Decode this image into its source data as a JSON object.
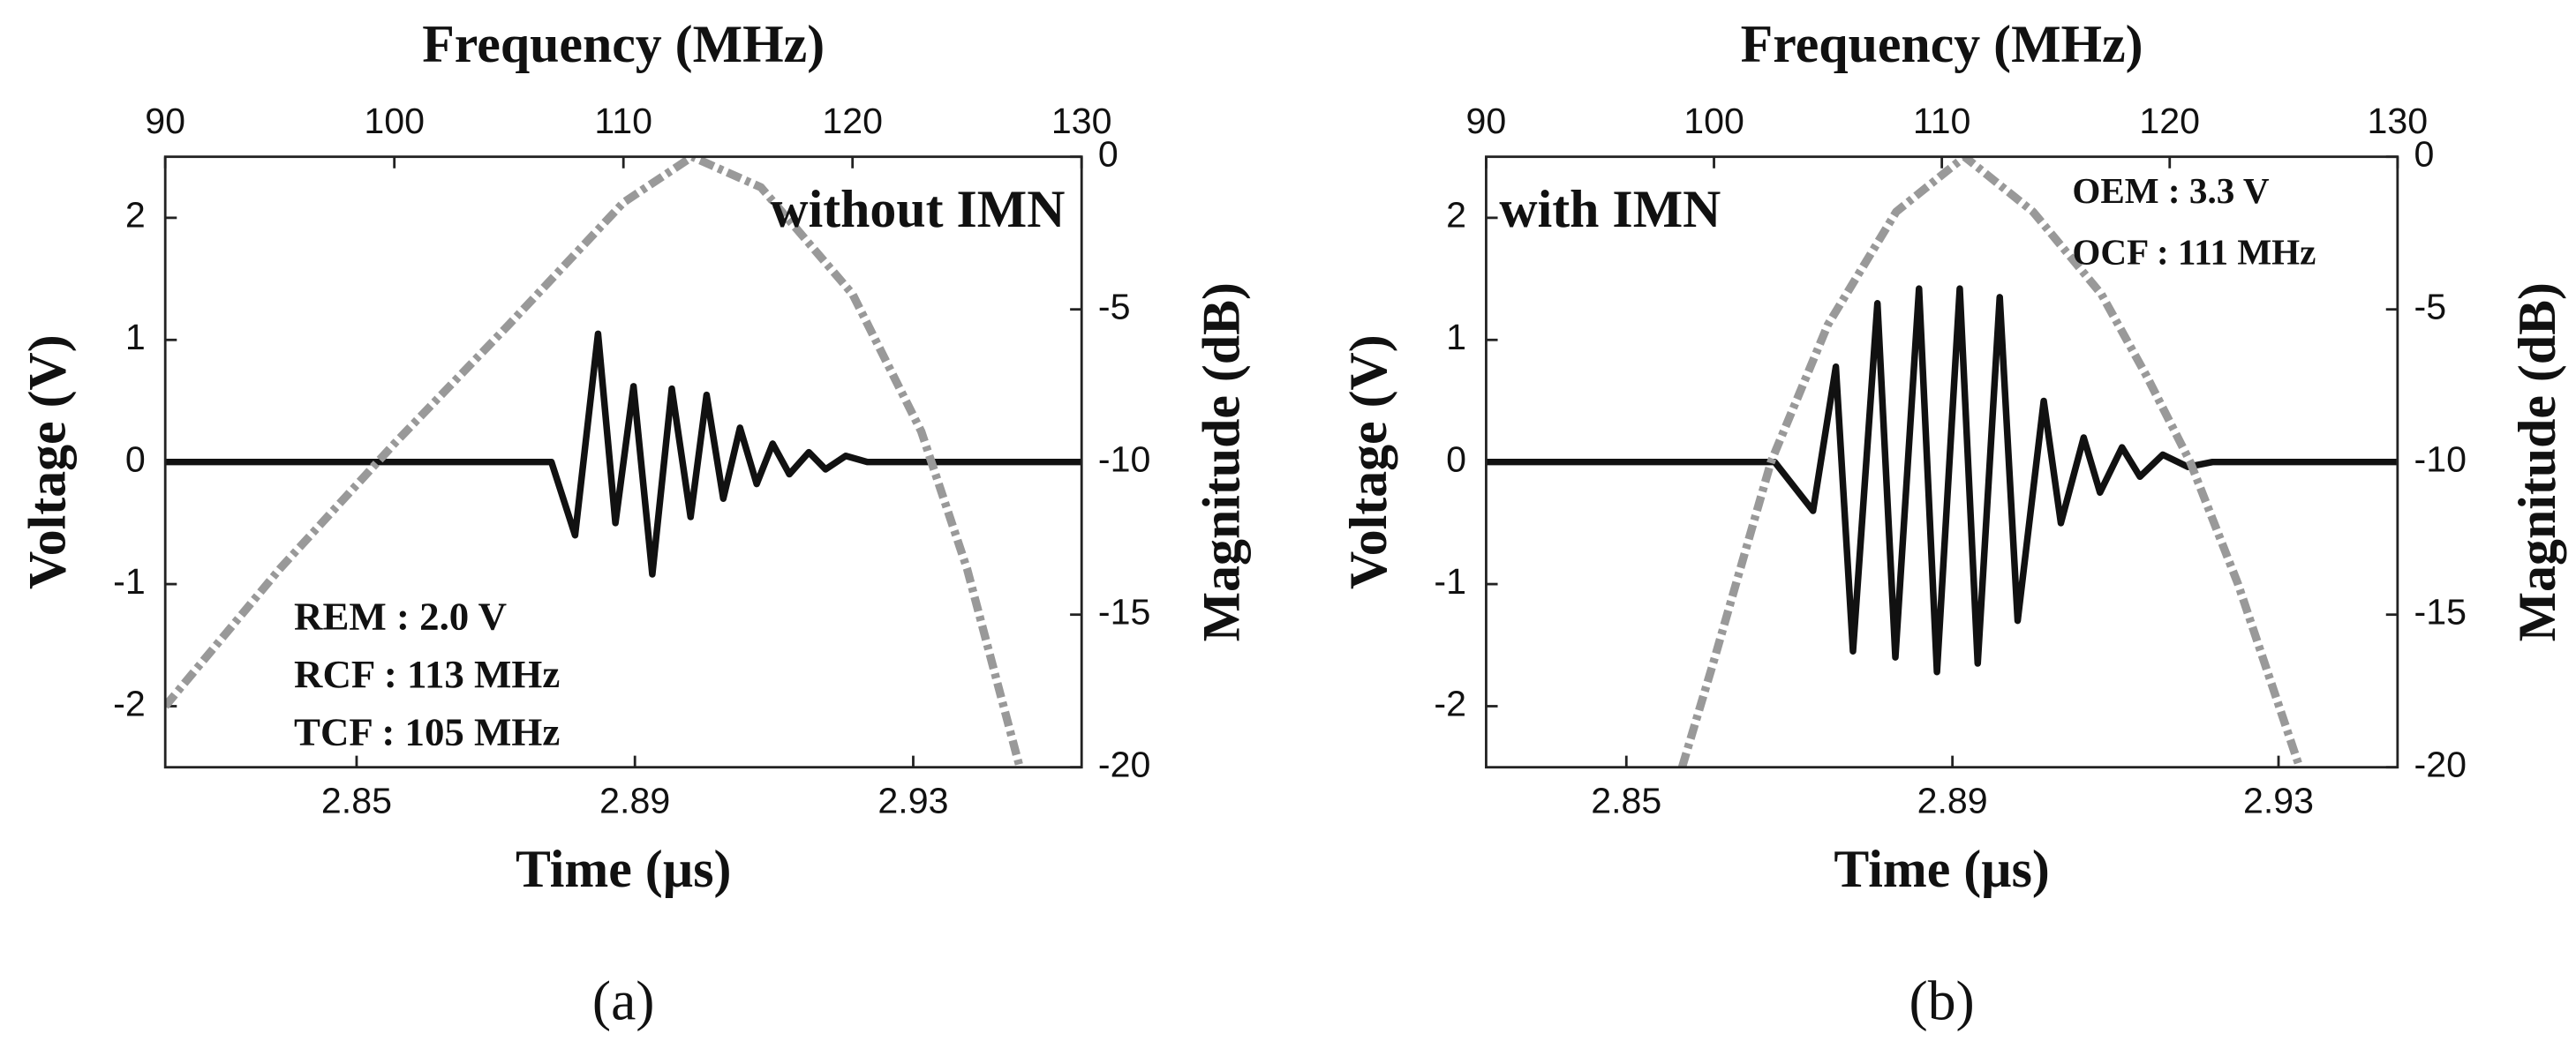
{
  "chart_data": [
    {
      "type": "line",
      "x2_label": "Frequency (MHz)",
      "x_label": "Time (µs)",
      "y_label": "Voltage (V)",
      "y2_label": "Magnitude (dB)",
      "xlim": [
        2.8225,
        2.9542
      ],
      "xticks": [
        2.85,
        2.89,
        2.93
      ],
      "x2lim": [
        90,
        130
      ],
      "x2ticks": [
        90,
        100,
        110,
        120,
        130
      ],
      "ylim": [
        -2.5,
        2.5
      ],
      "yticks": [
        -2,
        -1,
        0,
        1,
        2
      ],
      "y2lim": [
        -20,
        0
      ],
      "y2ticks": [
        -20,
        -15,
        -10,
        -5,
        0
      ],
      "series": [
        {
          "color": "#111111",
          "x": [
            2.8225,
            2.878,
            2.8814,
            2.8847,
            2.8872,
            2.8898,
            2.8925,
            2.8953,
            2.898,
            2.9003,
            2.9027,
            2.9051,
            2.9075,
            2.9098,
            2.9122,
            2.915,
            2.9174,
            2.9203,
            2.9234,
            2.9542
          ],
          "values": [
            0,
            0,
            -0.6,
            1.05,
            -0.5,
            0.62,
            -0.92,
            0.6,
            -0.45,
            0.55,
            -0.3,
            0.28,
            -0.18,
            0.15,
            -0.1,
            0.08,
            -0.06,
            0.05,
            0,
            0
          ]
        },
        {
          "color": "#999999",
          "axis": "y2",
          "x_axis": "x2",
          "dashed": true,
          "x": [
            90,
            95,
            100,
            105,
            110,
            113,
            116,
            120,
            123,
            125,
            127.3
          ],
          "values": [
            -18,
            -13.5,
            -9.4,
            -5.5,
            -1.5,
            0,
            -1,
            -4.5,
            -9,
            -13.5,
            -20
          ]
        }
      ],
      "annotations": [
        "without IMN",
        "REM : 2.0 V",
        "RCF : 113 MHz",
        "TCF : 105 MHz"
      ],
      "caption": "(a)"
    },
    {
      "type": "line",
      "x2_label": "Frequency (MHz)",
      "x_label": "Time (µs)",
      "y_label": "Voltage (V)",
      "y2_label": "Magnitude (dB)",
      "xlim": [
        2.8328,
        2.9446
      ],
      "xticks": [
        2.85,
        2.89,
        2.93
      ],
      "x2lim": [
        90,
        130
      ],
      "x2ticks": [
        90,
        100,
        110,
        120,
        130
      ],
      "ylim": [
        -2.5,
        2.5
      ],
      "yticks": [
        -2,
        -1,
        0,
        1,
        2
      ],
      "y2lim": [
        -20,
        0
      ],
      "y2ticks": [
        -20,
        -15,
        -10,
        -5,
        0
      ],
      "series": [
        {
          "color": "#111111",
          "x": [
            2.8328,
            2.8682,
            2.8729,
            2.8757,
            2.8778,
            2.8808,
            2.883,
            2.8859,
            2.8881,
            2.8909,
            2.8931,
            2.8958,
            2.898,
            2.9012,
            2.9033,
            2.9061,
            2.9081,
            2.9108,
            2.913,
            2.9158,
            2.9189,
            2.9219,
            2.9446
          ],
          "values": [
            0,
            0,
            -0.4,
            0.78,
            -1.55,
            1.3,
            -1.6,
            1.42,
            -1.72,
            1.42,
            -1.65,
            1.35,
            -1.3,
            0.5,
            -0.5,
            0.2,
            -0.25,
            0.12,
            -0.12,
            0.06,
            -0.04,
            0,
            0
          ]
        },
        {
          "color": "#999999",
          "axis": "y2",
          "x_axis": "x2",
          "dashed": true,
          "x": [
            98.6,
            100,
            102.5,
            105,
            108,
            111,
            114,
            117,
            119,
            120.9,
            123,
            125.7
          ],
          "values": [
            -20,
            -16.5,
            -10,
            -5.5,
            -1.8,
            0,
            -1.8,
            -4.5,
            -7.2,
            -10,
            -14,
            -20
          ]
        }
      ],
      "annotations": [
        "with IMN",
        "OEM : 3.3 V",
        "OCF : 111 MHz"
      ],
      "caption": "(b)"
    }
  ]
}
